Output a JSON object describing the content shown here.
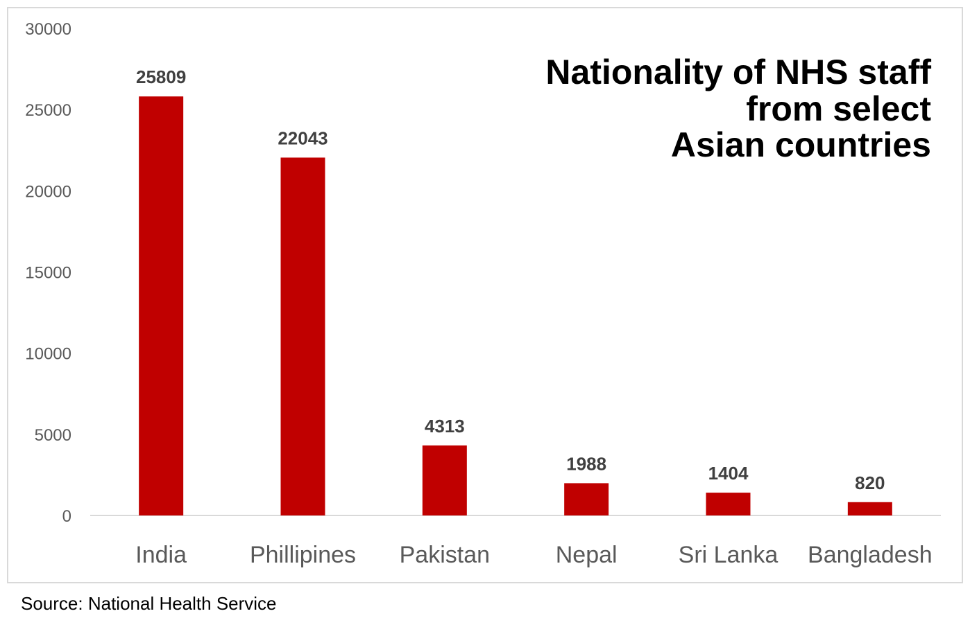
{
  "chart_data": {
    "type": "bar",
    "title_lines": [
      "Nationality of NHS staff",
      "from select",
      "Asian countries"
    ],
    "categories": [
      "India",
      "Phillipines",
      "Pakistan",
      "Nepal",
      "Sri Lanka",
      "Bangladesh"
    ],
    "values": [
      25809,
      22043,
      4313,
      1988,
      1404,
      820
    ],
    "data_labels": [
      "25809",
      "22043",
      "4313",
      "1988",
      "1404",
      "820"
    ],
    "y_ticks": [
      "0",
      "5000",
      "10000",
      "15000",
      "20000",
      "25000",
      "30000"
    ],
    "ylim": [
      0,
      30000
    ],
    "grid": false,
    "bar_color": "#c00000",
    "source": "Source: National Health Service"
  }
}
